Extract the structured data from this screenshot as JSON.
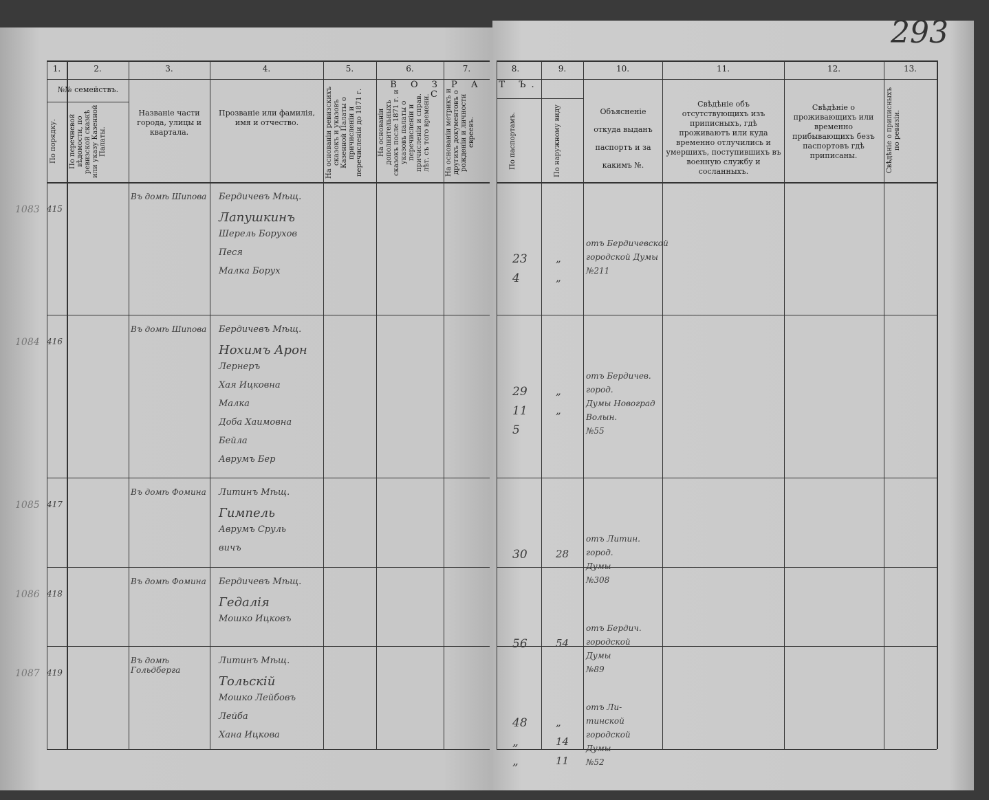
{
  "page_number": "293",
  "column_numbers": [
    "1.",
    "2.",
    "3.",
    "4.",
    "5.",
    "6.",
    "7.",
    "8.",
    "9.",
    "10.",
    "11.",
    "12.",
    "13."
  ],
  "headers": {
    "families": "№№ семействъ.",
    "col1": "По порядку.",
    "col2": "По перечневой вѣдомости, по ревизской сказкѣ или указу Казенной Палаты.",
    "col3": "Названіе части города, улицы и квартала.",
    "col4": "Прозваніе или фамилія, имя и отчество.",
    "age_left": "В О З Р А С",
    "age_right": "Т Ъ.",
    "col5": "На основаніи ревизскихъ сказокъ и указовъ Казенной Палаты о причисленіи и перечисленіи до 1871 г.",
    "col6": "На основаніи дополнительныхъ сказокъ после 1871 г. и указовъ палаты о перечисленіи и причисленіи и справ. лѣт. съ того времени.",
    "col7": "На основаніи метрикъ и другихъ документовъ о рожденіи и личности евреевъ.",
    "col8": "По паспортамъ.",
    "col9": "По наружному виду",
    "col10": "Объясненіе откуда выданъ паспортъ и за какимъ №.",
    "col11": "Свѣдѣніе объ отсутствующихъ изъ приписныхъ, гдѣ проживаютъ или куда временно отлучились и умершихъ, поступившихъ въ военную службу и сосланныхъ.",
    "col12": "Свѣдѣніе о проживающихъ или временно прибывающихъ безъ паспортовъ гдѣ приписаны.",
    "col13": "Свѣдѣніе о приписныхъ по ревизіи."
  },
  "rows": [
    {
      "margin": "1083",
      "no": "415",
      "street": "Въ домѣ Шипова",
      "names": [
        "Бердичевъ Мѣщ.",
        "Лапушкинъ",
        "Шерель Борухов",
        "Песя",
        "Малка Борух"
      ],
      "ages_passport": [
        "23",
        "4"
      ],
      "ages_look": [
        "„",
        "„"
      ],
      "passport": [
        "отъ Бердичевской",
        "городской Думы",
        "№211"
      ]
    },
    {
      "margin": "1084",
      "no": "416",
      "street": "Въ домѣ Шипова",
      "names": [
        "Бердичевъ Мѣщ.",
        "Нохимъ Арон",
        "Лернеръ",
        "Хая Ицковна",
        "Малка",
        "Доба Хаимовна",
        "Бейла",
        "Аврумъ Бер"
      ],
      "ages_passport": [
        "29",
        "11",
        "5"
      ],
      "ages_look": [
        "„",
        "„"
      ],
      "passport": [
        "отъ Бердичев.",
        "город.",
        "Думы Новоград",
        "Волын.",
        "№55"
      ]
    },
    {
      "margin": "1085",
      "no": "417",
      "street": "Въ домѣ Фомина",
      "names": [
        "Литинъ Мѣщ.",
        "Гимпель",
        "Аврумъ Сруль",
        "вичъ"
      ],
      "ages_passport": [
        "30"
      ],
      "ages_look": [
        "28"
      ],
      "passport": [
        "отъ Литин.",
        "город.",
        "Думы",
        "№308"
      ]
    },
    {
      "margin": "1086",
      "no": "418",
      "street": "Въ домѣ Фомина",
      "names": [
        "Бердичевъ Мѣщ.",
        "Гедалія",
        "Мошко Ицковъ"
      ],
      "ages_passport": [
        "56"
      ],
      "ages_look": [
        "54"
      ],
      "passport": [
        "отъ Бердич.",
        "городской",
        "Думы",
        "№89"
      ]
    },
    {
      "margin": "1087",
      "no": "419",
      "street": "Въ домѣ Гольдберга",
      "names": [
        "Литинъ Мѣщ.",
        "Тольскій",
        "Мошко Лейбовъ",
        "Лейба",
        "Хана Ицкова"
      ],
      "ages_passport": [
        "48",
        "„",
        "„"
      ],
      "ages_look": [
        "„",
        "14",
        "11"
      ],
      "passport": [
        "отъ Ли-",
        "тинской",
        "городской",
        "Думы",
        "№52"
      ]
    }
  ]
}
